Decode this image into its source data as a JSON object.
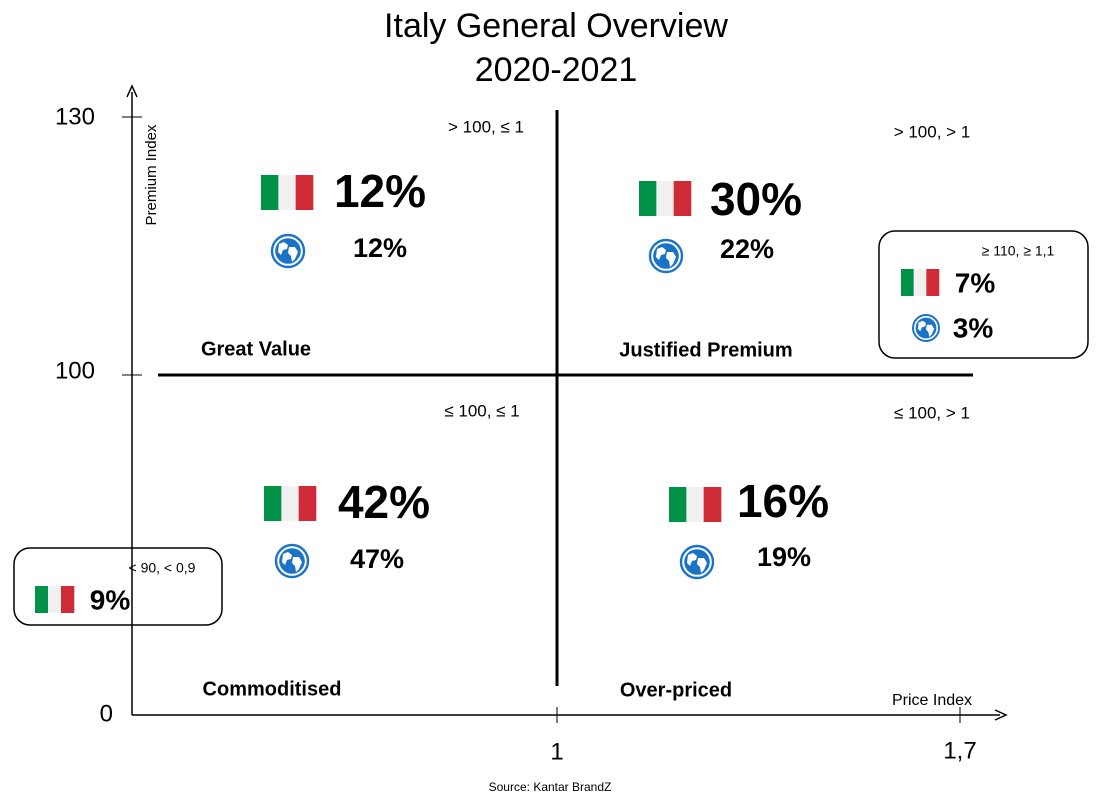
{
  "title": [
    "Italy General Overview",
    "2020-2021"
  ],
  "y_axis": {
    "label": "Premium Index",
    "ticks": [
      "130",
      "100",
      "0"
    ]
  },
  "x_axis": {
    "label": "Price Index",
    "ticks": [
      "1",
      "1,7"
    ]
  },
  "quadrants": [
    {
      "name": "Great Value",
      "condition": "> 100, ≤ 1",
      "italy": "12%",
      "global": "12%"
    },
    {
      "name": "Justified Premium",
      "condition": "> 100, > 1",
      "italy": "30%",
      "global": "22%"
    },
    {
      "name": "Commoditised",
      "condition": "≤ 100, ≤ 1",
      "italy": "42%",
      "global": "47%"
    },
    {
      "name": "Over-priced",
      "condition": "≤ 100, > 1",
      "italy": "16%",
      "global": "19%"
    }
  ],
  "callouts": [
    {
      "condition": "≥ 110, ≥ 1,1",
      "italy": "7%",
      "global": "3%"
    },
    {
      "condition": "< 90, < 0,9",
      "italy": "9%"
    }
  ],
  "source": "Source: Kantar BrandZ"
}
